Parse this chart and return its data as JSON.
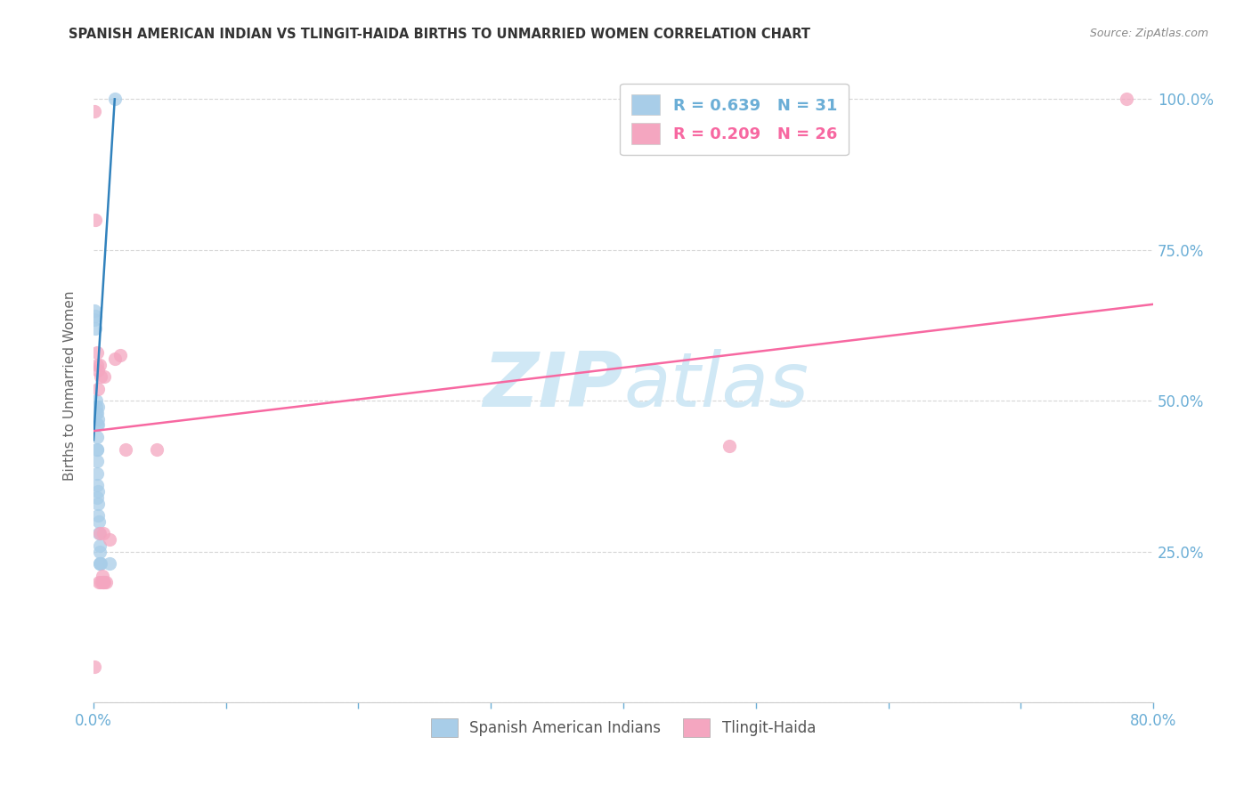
{
  "title": "SPANISH AMERICAN INDIAN VS TLINGIT-HAIDA BIRTHS TO UNMARRIED WOMEN CORRELATION CHART",
  "source": "Source: ZipAtlas.com",
  "legend_entries": [
    {
      "label": "R = 0.639   N = 31",
      "color": "#6baed6"
    },
    {
      "label": "R = 0.209   N = 26",
      "color": "#f768a1"
    }
  ],
  "legend_labels_bottom": [
    "Spanish American Indians",
    "Tlingit-Haida"
  ],
  "blue_scatter_x": [
    0.0008,
    0.0008,
    0.0016,
    0.0016,
    0.002,
    0.002,
    0.002,
    0.0024,
    0.0024,
    0.0024,
    0.0024,
    0.0028,
    0.0028,
    0.0028,
    0.0028,
    0.0028,
    0.0032,
    0.0032,
    0.0032,
    0.0036,
    0.0036,
    0.0036,
    0.004,
    0.004,
    0.0044,
    0.0044,
    0.0048,
    0.0048,
    0.0052,
    0.012,
    0.016
  ],
  "blue_scatter_y": [
    0.635,
    0.65,
    0.62,
    0.64,
    0.48,
    0.49,
    0.5,
    0.42,
    0.44,
    0.46,
    0.48,
    0.34,
    0.36,
    0.38,
    0.4,
    0.42,
    0.31,
    0.33,
    0.35,
    0.46,
    0.47,
    0.49,
    0.28,
    0.3,
    0.23,
    0.25,
    0.23,
    0.26,
    0.23,
    0.23,
    1.0
  ],
  "pink_scatter_x": [
    0.0008,
    0.0008,
    0.0016,
    0.0024,
    0.0024,
    0.0032,
    0.0032,
    0.004,
    0.0048,
    0.0048,
    0.0056,
    0.0056,
    0.0064,
    0.0064,
    0.0072,
    0.0072,
    0.008,
    0.008,
    0.0096,
    0.012,
    0.016,
    0.02,
    0.024,
    0.048,
    0.48,
    0.78
  ],
  "pink_scatter_y": [
    0.06,
    0.98,
    0.8,
    0.56,
    0.58,
    0.52,
    0.55,
    0.2,
    0.28,
    0.56,
    0.2,
    0.54,
    0.2,
    0.21,
    0.2,
    0.28,
    0.2,
    0.54,
    0.2,
    0.27,
    0.57,
    0.575,
    0.42,
    0.42,
    0.425,
    1.0
  ],
  "blue_line_x": [
    0.0,
    0.016
  ],
  "blue_line_y": [
    0.435,
    1.0
  ],
  "pink_line_x": [
    0.0,
    0.8
  ],
  "pink_line_y": [
    0.45,
    0.66
  ],
  "scatter_color_blue": "#a8cde8",
  "scatter_color_pink": "#f4a6c0",
  "line_color_blue": "#3182bd",
  "line_color_pink": "#f768a1",
  "title_color": "#333333",
  "axis_label_color": "#6baed6",
  "grid_color": "#cccccc",
  "watermark_color": "#d0e8f5",
  "ylabel": "Births to Unmarried Women",
  "xmin": 0.0,
  "xmax": 0.8,
  "ymin": 0.0,
  "ymax": 1.05
}
